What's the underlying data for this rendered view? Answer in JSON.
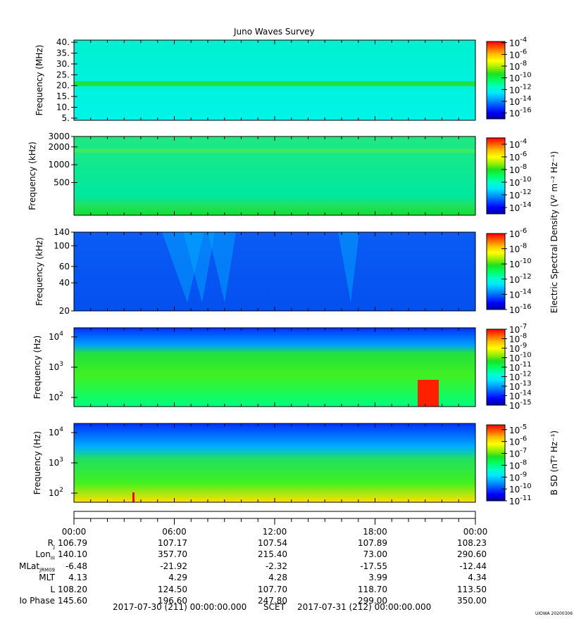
{
  "title": "Juno Waves Survey",
  "watermark": "UIOWA 20200306",
  "colors": {
    "cmap": [
      "#0000a0",
      "#0000ff",
      "#0050ff",
      "#00a0ff",
      "#00e8ff",
      "#00ffc0",
      "#00ff60",
      "#20e020",
      "#a0f000",
      "#ffff00",
      "#ffc000",
      "#ff6000",
      "#ff0000"
    ]
  },
  "chart_data": [
    {
      "type": "heatmap",
      "panel": "hfr-high",
      "ylabel": "Frequency (MHz)",
      "yscale": "linear",
      "ylim": [
        4,
        41
      ],
      "yticks": [
        "40.",
        "35.",
        "30.",
        "25.",
        "20.",
        "15.",
        "10.",
        "5."
      ],
      "ytick_values": [
        40,
        35,
        30,
        25,
        20,
        15,
        10,
        5
      ],
      "colorbar_labels": [
        "-4",
        "-6",
        "-8",
        "-10",
        "-12",
        "-14",
        "-16"
      ],
      "colorbar_exponents": [
        -4,
        -6,
        -8,
        -10,
        -12,
        -14,
        -16
      ],
      "clim": [
        -17,
        -3.8
      ]
    },
    {
      "type": "heatmap",
      "panel": "hfr-low",
      "ylabel": "Frequency (kHz)",
      "yscale": "log",
      "ylim": [
        140,
        3000
      ],
      "yticks": [
        "3000",
        "2000",
        "1000",
        "500"
      ],
      "ytick_values": [
        3000,
        2000,
        1000,
        500
      ],
      "colorbar_labels": [
        "-4",
        "-6",
        "-8",
        "-10",
        "-12",
        "-14"
      ],
      "colorbar_exponents": [
        -4,
        -6,
        -8,
        -10,
        -12,
        -14
      ],
      "clim": [
        -15,
        -3
      ]
    },
    {
      "type": "heatmap",
      "panel": "lfr",
      "ylabel": "Frequency (kHz)",
      "yscale": "log",
      "ylim": [
        20,
        140
      ],
      "yticks": [
        "140",
        "100",
        "60",
        "40",
        "20"
      ],
      "ytick_values": [
        140,
        100,
        60,
        40,
        20
      ],
      "colorbar_labels": [
        "-6",
        "-8",
        "-10",
        "-12",
        "-14",
        "-16"
      ],
      "colorbar_exponents": [
        -6,
        -8,
        -10,
        -12,
        -14,
        -16
      ],
      "clim": [
        -16,
        -6
      ],
      "shared_colorbar_title": "Electric Spectral Density (V² m⁻² Hz⁻¹)"
    },
    {
      "type": "heatmap",
      "panel": "e-low",
      "ylabel": "Frequency (Hz)",
      "yscale": "log",
      "ylim": [
        50,
        20000
      ],
      "yticks": [
        "4",
        "3",
        "2"
      ],
      "ytick_values": [
        10000,
        1000,
        100
      ],
      "colorbar_labels": [
        "-7",
        "-8",
        "-9",
        "-10",
        "-11",
        "-12",
        "-13",
        "-14",
        "-15"
      ],
      "colorbar_exponents": [
        -7,
        -8,
        -9,
        -10,
        -11,
        -12,
        -13,
        -14,
        -15
      ],
      "clim": [
        -15,
        -7
      ]
    },
    {
      "type": "heatmap",
      "panel": "b-low",
      "ylabel": "Frequency (Hz)",
      "yscale": "log",
      "ylim": [
        50,
        20000
      ],
      "yticks": [
        "4",
        "3",
        "2"
      ],
      "ytick_values": [
        10000,
        1000,
        100
      ],
      "colorbar_labels": [
        "-5",
        "-6",
        "-7",
        "-8",
        "-9",
        "-10",
        "-11"
      ],
      "colorbar_exponents": [
        -5,
        -6,
        -7,
        -8,
        -9,
        -10,
        -11
      ],
      "clim": [
        -11,
        -4.6
      ],
      "colorbar_title": "B SD (nT² Hz⁻¹)"
    }
  ],
  "time_axis": {
    "labels": [
      "00:00",
      "06:00",
      "12:00",
      "18:00",
      "00:00"
    ],
    "hours": [
      0,
      6,
      12,
      18,
      24
    ]
  },
  "ephemeris": [
    {
      "label": "R",
      "sub": "J",
      "values": [
        "106.79",
        "107.17",
        "107.54",
        "107.89",
        "108.23"
      ]
    },
    {
      "label": "Lon",
      "sub": "III",
      "values": [
        "140.10",
        "357.70",
        "215.40",
        "73.00",
        "290.60"
      ]
    },
    {
      "label": "MLat",
      "sub": "JRM09",
      "values": [
        "-6.48",
        "-21.92",
        "-2.32",
        "-17.55",
        "-12.44"
      ]
    },
    {
      "label": "MLT",
      "sub": "",
      "values": [
        "4.13",
        "4.29",
        "4.28",
        "3.99",
        "4.34"
      ]
    },
    {
      "label": "L",
      "sub": "",
      "values": [
        "108.20",
        "124.50",
        "107.70",
        "118.70",
        "113.50"
      ]
    },
    {
      "label": "Io Phase",
      "sub": "",
      "values": [
        "145.60",
        "196.60",
        "247.80",
        "299.00",
        "350.00"
      ]
    }
  ],
  "footer": {
    "start": "2017-07-30 (211) 00:00:00.000",
    "scet": "SCET",
    "end": "2017-07-31 (212) 00:00:00.000"
  }
}
